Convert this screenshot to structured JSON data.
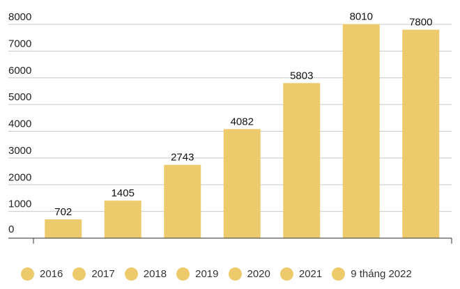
{
  "chart_data": {
    "type": "bar",
    "categories": [
      "2016",
      "2017",
      "2018",
      "2019",
      "2020",
      "2021",
      "9 tháng 2022"
    ],
    "values": [
      702,
      1405,
      2743,
      4082,
      5803,
      8010,
      7800
    ],
    "data_labels": [
      "702",
      "1405",
      "2743",
      "4082",
      "5803",
      "8010",
      "7800"
    ],
    "yticks": [
      0,
      1000,
      2000,
      3000,
      4000,
      5000,
      6000,
      7000,
      8000
    ],
    "ytick_labels": [
      "0",
      "1000",
      "2000",
      "3000",
      "4000",
      "5000",
      "6000",
      "7000",
      "8000"
    ],
    "ylim": [
      0,
      8000
    ],
    "grid": true,
    "legend_position": "bottom",
    "title": "",
    "xlabel": "",
    "ylabel": "",
    "bar_color": "#EDCB6C",
    "grid_color": "#c8c8c8",
    "axis_color": "#555555"
  }
}
